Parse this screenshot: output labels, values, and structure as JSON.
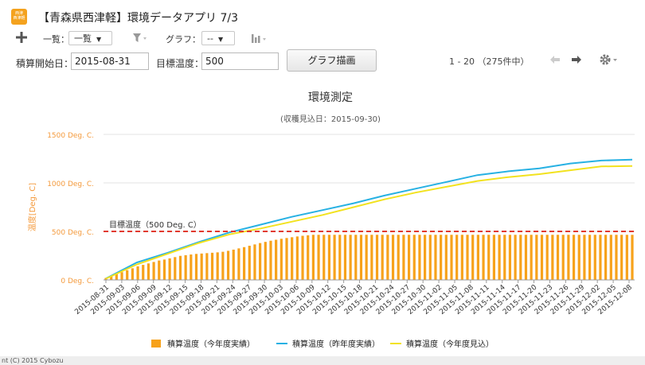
{
  "app": {
    "icon_text_line1": "西津",
    "icon_text_line2": "西津軽",
    "title": "【青森県西津軽】環境データアプリ 7/3"
  },
  "toolbar": {
    "add_icon": "plus-icon",
    "view_label": "一覧：",
    "view_value": "一覧",
    "filter_icon": "funnel-icon",
    "graph_label": "グラフ：",
    "graph_value": "--",
    "chart_icon": "bar-chart-icon"
  },
  "form": {
    "start_label": "積算開始日：",
    "start_value": "2015-08-31",
    "target_label": "目標温度：",
    "target_value": "500",
    "draw_button": "グラフ描画"
  },
  "pager": {
    "range": "1 - 20",
    "total": "（275件中）",
    "prev_icon": "arrow-left-icon",
    "next_icon": "arrow-right-icon",
    "settings_icon": "gear-icon"
  },
  "footer": {
    "text": "nt (C) 2015 Cybozu"
  },
  "colors": {
    "bar": "#f7a21b",
    "last_year": "#27b1e3",
    "forecast": "#f2e21f",
    "target": "#e23a2f",
    "axis_label": "#f49a3c"
  },
  "chart_data": {
    "type": "bar",
    "title": "環境測定",
    "subtitle": "(収穫見込日：2015-09-30)",
    "ylabel": "温度[Deg. C]",
    "yticks": [
      "0 Deg. C.",
      "500 Deg. C.",
      "1000 Deg. C.",
      "1500 Deg. C."
    ],
    "ylim": [
      0,
      1500
    ],
    "xticks": [
      "2015-08-31",
      "2015-09-03",
      "2015-09-06",
      "2015-09-09",
      "2015-09-12",
      "2015-09-15",
      "2015-09-18",
      "2015-09-21",
      "2015-09-24",
      "2015-09-27",
      "2015-09-30",
      "2015-10-03",
      "2015-10-06",
      "2015-10-09",
      "2015-10-12",
      "2015-10-15",
      "2015-10-18",
      "2015-10-21",
      "2015-10-24",
      "2015-10-27",
      "2015-10-30",
      "2015-11-02",
      "2015-11-05",
      "2015-11-08",
      "2015-11-11",
      "2015-11-14",
      "2015-11-17",
      "2015-11-20",
      "2015-11-23",
      "2015-11-26",
      "2015-11-29",
      "2015-12-02",
      "2015-12-05",
      "2015-12-08"
    ],
    "target_line": {
      "value": 500,
      "label": "目標温度（500 Deg. C）"
    },
    "grid": true,
    "legend_position": "bottom",
    "series": [
      {
        "name": "積算温度（今年度実績）",
        "type": "bar",
        "values": [
          20,
          40,
          60,
          80,
          100,
          120,
          140,
          155,
          170,
          185,
          200,
          210,
          222,
          235,
          248,
          255,
          262,
          268,
          272,
          276,
          280,
          284,
          290,
          300,
          312,
          325,
          338,
          352,
          366,
          380,
          392,
          404,
          414,
          424,
          432,
          440,
          448,
          455,
          460,
          465,
          465,
          465,
          465,
          465,
          465,
          465,
          465,
          465,
          465,
          465,
          465,
          465,
          465,
          465,
          465,
          465,
          465,
          465,
          465,
          465,
          465,
          465,
          465,
          465,
          465,
          465,
          465,
          465,
          465,
          465,
          465,
          465,
          465,
          465,
          465,
          465,
          465,
          465,
          465,
          465,
          465,
          465,
          465,
          465,
          465,
          465,
          465,
          465,
          465,
          465,
          465,
          465,
          465,
          465,
          465,
          465,
          465,
          465,
          465,
          465
        ]
      },
      {
        "name": "積算温度（昨年度実績）",
        "type": "line",
        "points": [
          [
            0,
            15
          ],
          [
            10,
            180
          ],
          [
            20,
            280
          ],
          [
            30,
            390
          ],
          [
            40,
            490
          ],
          [
            50,
            570
          ],
          [
            60,
            650
          ],
          [
            70,
            720
          ],
          [
            80,
            790
          ],
          [
            90,
            870
          ],
          [
            100,
            940
          ],
          [
            110,
            1010
          ],
          [
            120,
            1080
          ],
          [
            130,
            1120
          ],
          [
            140,
            1150
          ],
          [
            150,
            1200
          ],
          [
            160,
            1230
          ],
          [
            170,
            1240
          ]
        ]
      },
      {
        "name": "積算温度（今年度見込）",
        "type": "line",
        "points": [
          [
            0,
            12
          ],
          [
            10,
            160
          ],
          [
            20,
            270
          ],
          [
            30,
            380
          ],
          [
            40,
            470
          ],
          [
            50,
            530
          ],
          [
            60,
            600
          ],
          [
            70,
            670
          ],
          [
            80,
            750
          ],
          [
            90,
            830
          ],
          [
            100,
            900
          ],
          [
            110,
            960
          ],
          [
            120,
            1020
          ],
          [
            130,
            1060
          ],
          [
            140,
            1090
          ],
          [
            150,
            1130
          ],
          [
            160,
            1170
          ],
          [
            170,
            1175
          ]
        ]
      }
    ],
    "x_span": 171
  }
}
